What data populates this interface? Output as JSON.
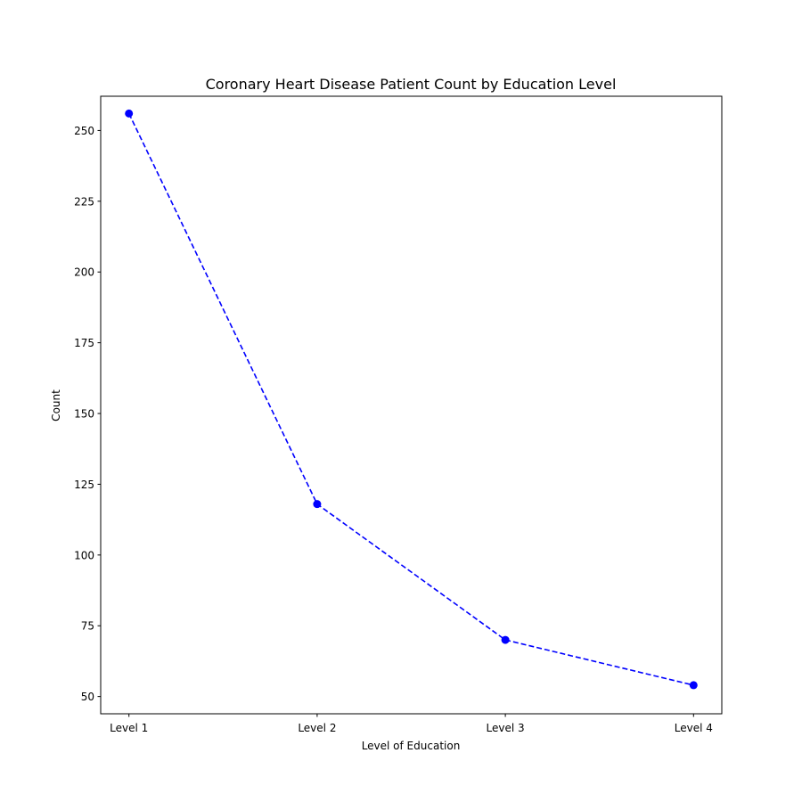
{
  "chart_data": {
    "type": "line",
    "title": "Coronary Heart Disease Patient Count by Education Level",
    "xlabel": "Level of Education",
    "ylabel": "Count",
    "categories": [
      "Level 1",
      "Level 2",
      "Level 3",
      "Level 4"
    ],
    "series": [
      {
        "values": [
          256,
          118,
          70,
          54
        ],
        "color": "#0000ff",
        "line_style": "dashed",
        "marker": "circle"
      }
    ],
    "ylim": [
      43.9,
      262.1
    ],
    "yticks": [
      50,
      75,
      100,
      125,
      150,
      175,
      200,
      225,
      250
    ],
    "grid": false,
    "legend": "none"
  }
}
